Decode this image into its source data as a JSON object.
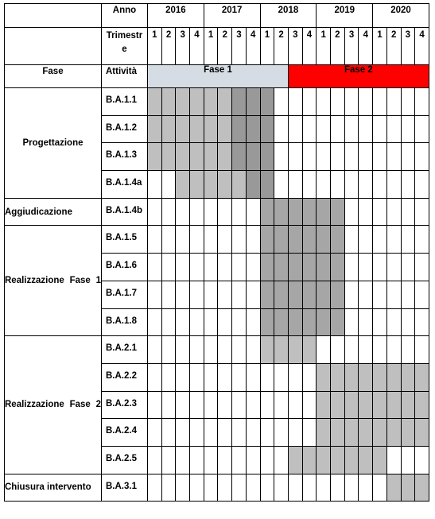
{
  "header": {
    "anno_label": "Anno",
    "trimestre_label": "Trimestre",
    "fase_label": "Fase",
    "attivita_label": "Attività",
    "years": [
      "2016",
      "2017",
      "2018",
      "2019",
      "2020"
    ],
    "quarters": [
      "1",
      "2",
      "3",
      "4"
    ],
    "phase1_label": "Fase 1",
    "phase2_label": "Fase 2",
    "phase1_quarters": 10,
    "phase2_quarters": 10
  },
  "colors": {
    "light": "#bfbfbf",
    "mid": "#a6a6a6",
    "dark": "#999999",
    "phase1": "#d5dce4",
    "phase2": "#ff0000"
  },
  "groups": [
    {
      "fase": "Progettazione",
      "align": "center",
      "activities": [
        {
          "name": "B.A.1.1",
          "cells": [
            "L",
            "L",
            "L",
            "L",
            "L",
            "L",
            "D",
            "D",
            "D",
            "",
            "",
            "",
            "",
            "",
            "",
            "",
            "",
            "",
            "",
            ""
          ]
        },
        {
          "name": "B.A.1.2",
          "cells": [
            "L",
            "L",
            "L",
            "L",
            "L",
            "L",
            "D",
            "D",
            "D",
            "",
            "",
            "",
            "",
            "",
            "",
            "",
            "",
            "",
            "",
            ""
          ]
        },
        {
          "name": "B.A.1.3",
          "cells": [
            "L",
            "L",
            "L",
            "L",
            "L",
            "L",
            "D",
            "D",
            "D",
            "",
            "",
            "",
            "",
            "",
            "",
            "",
            "",
            "",
            "",
            ""
          ]
        },
        {
          "name": "B.A.1.4a",
          "cells": [
            "",
            "",
            "L",
            "L",
            "L",
            "L",
            "L",
            "D",
            "D",
            "",
            "",
            "",
            "",
            "",
            "",
            "",
            "",
            "",
            "",
            ""
          ]
        }
      ]
    },
    {
      "fase": "Aggiudicazione",
      "align": "left",
      "activities": [
        {
          "name": "B.A.1.4b",
          "cells": [
            "",
            "",
            "",
            "",
            "",
            "",
            "",
            "",
            "M",
            "M",
            "M",
            "M",
            "M",
            "M",
            "",
            "",
            "",
            "",
            "",
            ""
          ]
        }
      ]
    },
    {
      "fase": "Realizzazione Fase 1",
      "align": "left",
      "activities": [
        {
          "name": "B.A.1.5",
          "cells": [
            "",
            "",
            "",
            "",
            "",
            "",
            "",
            "",
            "M",
            "M",
            "M",
            "M",
            "M",
            "M",
            "",
            "",
            "",
            "",
            "",
            ""
          ]
        },
        {
          "name": "B.A.1.6",
          "cells": [
            "",
            "",
            "",
            "",
            "",
            "",
            "",
            "",
            "M",
            "M",
            "M",
            "M",
            "M",
            "M",
            "",
            "",
            "",
            "",
            "",
            ""
          ]
        },
        {
          "name": "B.A.1.7",
          "cells": [
            "",
            "",
            "",
            "",
            "",
            "",
            "",
            "",
            "M",
            "M",
            "M",
            "M",
            "M",
            "M",
            "",
            "",
            "",
            "",
            "",
            ""
          ]
        },
        {
          "name": "B.A.1.8",
          "cells": [
            "",
            "",
            "",
            "",
            "",
            "",
            "",
            "",
            "M",
            "M",
            "M",
            "M",
            "M",
            "M",
            "",
            "",
            "",
            "",
            "",
            ""
          ]
        }
      ]
    },
    {
      "fase": "Realizzazione Fase 2",
      "align": "left",
      "activities": [
        {
          "name": "B.A.2.1",
          "cells": [
            "",
            "",
            "",
            "",
            "",
            "",
            "",
            "",
            "L",
            "L",
            "L",
            "L",
            "",
            "",
            "",
            "",
            "",
            "",
            "",
            ""
          ]
        },
        {
          "name": "B.A.2.2",
          "cells": [
            "",
            "",
            "",
            "",
            "",
            "",
            "",
            "",
            "",
            "",
            "",
            "",
            "L",
            "L",
            "L",
            "L",
            "L",
            "L",
            "L",
            "L"
          ]
        },
        {
          "name": "B.A.2.3",
          "cells": [
            "",
            "",
            "",
            "",
            "",
            "",
            "",
            "",
            "",
            "",
            "",
            "",
            "L",
            "L",
            "L",
            "L",
            "L",
            "L",
            "L",
            "L"
          ]
        },
        {
          "name": "B.A.2.4",
          "cells": [
            "",
            "",
            "",
            "",
            "",
            "",
            "",
            "",
            "",
            "",
            "",
            "",
            "L",
            "L",
            "L",
            "L",
            "L",
            "L",
            "L",
            "L"
          ]
        },
        {
          "name": "B.A.2.5",
          "cells": [
            "",
            "",
            "",
            "",
            "",
            "",
            "",
            "",
            "",
            "",
            "L",
            "L",
            "L",
            "L",
            "L",
            "L",
            "L",
            "",
            "",
            ""
          ]
        }
      ]
    },
    {
      "fase": "Chiusura intervento",
      "align": "left",
      "activities": [
        {
          "name": "B.A.3.1",
          "cells": [
            "",
            "",
            "",
            "",
            "",
            "",
            "",
            "",
            "",
            "",
            "",
            "",
            "",
            "",
            "",
            "",
            "",
            "L",
            "L",
            "L"
          ]
        }
      ]
    }
  ]
}
